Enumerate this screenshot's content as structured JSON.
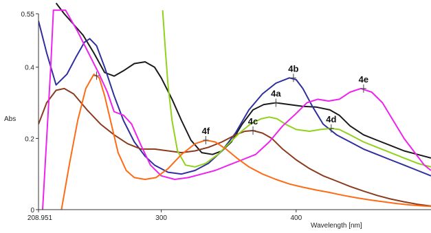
{
  "chart_data": {
    "type": "line",
    "title": "",
    "xlabel": "Wavelength [nm]",
    "ylabel": "Abs",
    "xlim": [
      208.951,
      500
    ],
    "ylim": [
      0,
      0.55
    ],
    "x_ticks": [
      {
        "value": 208.951,
        "label": "208.951"
      },
      {
        "value": 300,
        "label": "300"
      },
      {
        "value": 400,
        "label": "400"
      }
    ],
    "y_ticks": [
      {
        "value": 0,
        "label": "0"
      },
      {
        "value": 0.2,
        "label": "0.2"
      },
      {
        "value": 0.4,
        "label": "0.4"
      },
      {
        "value": 0.55,
        "label": "0.55"
      }
    ],
    "grid": false,
    "legend": "none",
    "series": [
      {
        "name": "4a",
        "color": "#1a1a1a",
        "values": [
          [
            222,
            0.58
          ],
          [
            228,
            0.55
          ],
          [
            235,
            0.52
          ],
          [
            242,
            0.49
          ],
          [
            250,
            0.44
          ],
          [
            258,
            0.385
          ],
          [
            265,
            0.375
          ],
          [
            272,
            0.39
          ],
          [
            280,
            0.41
          ],
          [
            288,
            0.415
          ],
          [
            295,
            0.4
          ],
          [
            300,
            0.37
          ],
          [
            308,
            0.31
          ],
          [
            315,
            0.25
          ],
          [
            322,
            0.195
          ],
          [
            330,
            0.16
          ],
          [
            338,
            0.155
          ],
          [
            345,
            0.165
          ],
          [
            352,
            0.19
          ],
          [
            360,
            0.24
          ],
          [
            368,
            0.28
          ],
          [
            376,
            0.295
          ],
          [
            385,
            0.3
          ],
          [
            395,
            0.295
          ],
          [
            405,
            0.29
          ],
          [
            415,
            0.288
          ],
          [
            425,
            0.28
          ],
          [
            432,
            0.265
          ],
          [
            440,
            0.235
          ],
          [
            450,
            0.21
          ],
          [
            460,
            0.195
          ],
          [
            470,
            0.18
          ],
          [
            480,
            0.165
          ],
          [
            490,
            0.155
          ],
          [
            500,
            0.145
          ]
        ]
      },
      {
        "name": "4b",
        "color": "#2e2e9e",
        "values": [
          [
            208.951,
            0.53
          ],
          [
            215,
            0.44
          ],
          [
            222,
            0.35
          ],
          [
            230,
            0.38
          ],
          [
            237,
            0.43
          ],
          [
            243,
            0.47
          ],
          [
            247,
            0.48
          ],
          [
            252,
            0.46
          ],
          [
            258,
            0.4
          ],
          [
            265,
            0.32
          ],
          [
            272,
            0.25
          ],
          [
            280,
            0.19
          ],
          [
            288,
            0.15
          ],
          [
            295,
            0.125
          ],
          [
            305,
            0.105
          ],
          [
            315,
            0.1
          ],
          [
            325,
            0.11
          ],
          [
            335,
            0.13
          ],
          [
            345,
            0.165
          ],
          [
            355,
            0.215
          ],
          [
            365,
            0.28
          ],
          [
            375,
            0.325
          ],
          [
            385,
            0.355
          ],
          [
            395,
            0.37
          ],
          [
            400,
            0.365
          ],
          [
            405,
            0.34
          ],
          [
            412,
            0.29
          ],
          [
            420,
            0.24
          ],
          [
            430,
            0.21
          ],
          [
            440,
            0.19
          ],
          [
            450,
            0.17
          ],
          [
            460,
            0.155
          ],
          [
            470,
            0.14
          ],
          [
            480,
            0.125
          ],
          [
            490,
            0.11
          ],
          [
            500,
            0.095
          ]
        ]
      },
      {
        "name": "4c",
        "color": "#8b3a1e",
        "values": [
          [
            208.951,
            0.24
          ],
          [
            215,
            0.3
          ],
          [
            222,
            0.335
          ],
          [
            228,
            0.34
          ],
          [
            235,
            0.325
          ],
          [
            245,
            0.28
          ],
          [
            255,
            0.24
          ],
          [
            265,
            0.21
          ],
          [
            275,
            0.185
          ],
          [
            285,
            0.17
          ],
          [
            295,
            0.17
          ],
          [
            305,
            0.165
          ],
          [
            315,
            0.16
          ],
          [
            325,
            0.165
          ],
          [
            335,
            0.175
          ],
          [
            345,
            0.19
          ],
          [
            355,
            0.21
          ],
          [
            362,
            0.22
          ],
          [
            368,
            0.222
          ],
          [
            375,
            0.215
          ],
          [
            382,
            0.2
          ],
          [
            390,
            0.17
          ],
          [
            400,
            0.14
          ],
          [
            410,
            0.115
          ],
          [
            420,
            0.095
          ],
          [
            430,
            0.08
          ],
          [
            440,
            0.065
          ],
          [
            450,
            0.052
          ],
          [
            460,
            0.04
          ],
          [
            470,
            0.03
          ],
          [
            480,
            0.022
          ],
          [
            490,
            0.015
          ],
          [
            500,
            0.01
          ]
        ]
      },
      {
        "name": "4d",
        "color": "#8fd21a",
        "values": [
          [
            301,
            0.56
          ],
          [
            303,
            0.45
          ],
          [
            305,
            0.35
          ],
          [
            308,
            0.25
          ],
          [
            312,
            0.165
          ],
          [
            318,
            0.125
          ],
          [
            325,
            0.12
          ],
          [
            333,
            0.13
          ],
          [
            342,
            0.155
          ],
          [
            350,
            0.185
          ],
          [
            358,
            0.215
          ],
          [
            366,
            0.24
          ],
          [
            374,
            0.255
          ],
          [
            380,
            0.26
          ],
          [
            386,
            0.255
          ],
          [
            392,
            0.24
          ],
          [
            400,
            0.225
          ],
          [
            410,
            0.22
          ],
          [
            418,
            0.225
          ],
          [
            426,
            0.228
          ],
          [
            432,
            0.225
          ],
          [
            440,
            0.21
          ],
          [
            450,
            0.19
          ],
          [
            460,
            0.175
          ],
          [
            470,
            0.16
          ],
          [
            480,
            0.145
          ],
          [
            490,
            0.13
          ],
          [
            500,
            0.12
          ]
        ]
      },
      {
        "name": "4e",
        "color": "#ee22ee",
        "values": [
          [
            212,
            0.0
          ],
          [
            215,
            0.2
          ],
          [
            218,
            0.4
          ],
          [
            220,
            0.56
          ],
          [
            229,
            0.56
          ],
          [
            238,
            0.5
          ],
          [
            246,
            0.44
          ],
          [
            254,
            0.38
          ],
          [
            260,
            0.33
          ],
          [
            265,
            0.275
          ],
          [
            272,
            0.265
          ],
          [
            278,
            0.24
          ],
          [
            285,
            0.18
          ],
          [
            292,
            0.125
          ],
          [
            300,
            0.095
          ],
          [
            310,
            0.085
          ],
          [
            320,
            0.09
          ],
          [
            330,
            0.1
          ],
          [
            340,
            0.11
          ],
          [
            350,
            0.125
          ],
          [
            360,
            0.14
          ],
          [
            370,
            0.155
          ],
          [
            380,
            0.19
          ],
          [
            390,
            0.235
          ],
          [
            400,
            0.27
          ],
          [
            408,
            0.3
          ],
          [
            416,
            0.31
          ],
          [
            424,
            0.305
          ],
          [
            432,
            0.31
          ],
          [
            440,
            0.33
          ],
          [
            448,
            0.34
          ],
          [
            456,
            0.33
          ],
          [
            464,
            0.3
          ],
          [
            472,
            0.25
          ],
          [
            480,
            0.2
          ],
          [
            488,
            0.16
          ],
          [
            495,
            0.125
          ],
          [
            500,
            0.11
          ]
        ]
      },
      {
        "name": "4f",
        "color": "#ff6a14",
        "values": [
          [
            226,
            0.0
          ],
          [
            232,
            0.13
          ],
          [
            238,
            0.25
          ],
          [
            244,
            0.34
          ],
          [
            250,
            0.38
          ],
          [
            254,
            0.37
          ],
          [
            258,
            0.32
          ],
          [
            263,
            0.24
          ],
          [
            268,
            0.16
          ],
          [
            274,
            0.11
          ],
          [
            280,
            0.09
          ],
          [
            288,
            0.085
          ],
          [
            296,
            0.09
          ],
          [
            305,
            0.115
          ],
          [
            315,
            0.155
          ],
          [
            325,
            0.185
          ],
          [
            333,
            0.195
          ],
          [
            340,
            0.19
          ],
          [
            348,
            0.17
          ],
          [
            356,
            0.145
          ],
          [
            365,
            0.12
          ],
          [
            375,
            0.1
          ],
          [
            385,
            0.085
          ],
          [
            395,
            0.072
          ],
          [
            405,
            0.063
          ],
          [
            415,
            0.055
          ],
          [
            425,
            0.048
          ],
          [
            435,
            0.04
          ],
          [
            445,
            0.033
          ],
          [
            455,
            0.027
          ],
          [
            465,
            0.022
          ],
          [
            475,
            0.017
          ],
          [
            485,
            0.013
          ],
          [
            495,
            0.01
          ],
          [
            500,
            0.009
          ]
        ]
      }
    ],
    "annotations": [
      {
        "label": "4a",
        "x": 385,
        "y": 0.3
      },
      {
        "label": "4b",
        "x": 398,
        "y": 0.37
      },
      {
        "label": "4c",
        "x": 368,
        "y": 0.222
      },
      {
        "label": "4d",
        "x": 426,
        "y": 0.228
      },
      {
        "label": "4e",
        "x": 450,
        "y": 0.34
      },
      {
        "label": "4f",
        "x": 333,
        "y": 0.195
      },
      {
        "label": "",
        "x": 252,
        "y": 0.376
      }
    ]
  }
}
